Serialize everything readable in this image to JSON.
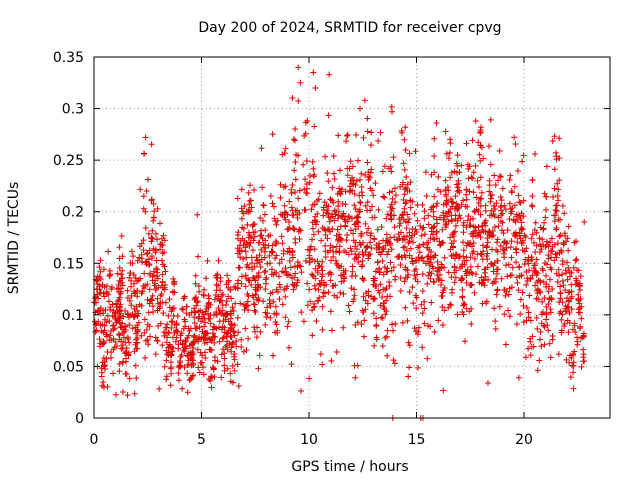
{
  "chart_data": {
    "type": "scatter",
    "title": "Day 200 of 2024, SRMTID for receiver cpvg",
    "xlabel": "GPS time / hours",
    "ylabel": "SRMTID / TECUs",
    "xlim": [
      0,
      24
    ],
    "ylim": [
      0,
      0.35
    ],
    "x_ticks": [
      0,
      5,
      10,
      15,
      20
    ],
    "x_tick_labels": [
      "0",
      "5",
      "10",
      "15",
      "20"
    ],
    "y_ticks": [
      0,
      0.05,
      0.1,
      0.15,
      0.2,
      0.25,
      0.3,
      0.35
    ],
    "y_tick_labels": [
      "0",
      "0.05",
      "0.1",
      "0.15",
      "0.2",
      "0.25",
      "0.3",
      "0.35"
    ],
    "grid": true,
    "marker": "plus",
    "color": "#e00000",
    "envelope": {
      "description": "approximate distribution of the dense point cloud (hour, mean, spread) in data units",
      "hours": [
        0,
        0.5,
        1,
        1.5,
        2,
        2.5,
        3,
        3.5,
        4,
        4.5,
        5,
        5.5,
        6,
        6.5,
        7,
        7.5,
        8,
        8.5,
        9,
        9.5,
        10,
        10.5,
        11,
        11.5,
        12,
        12.5,
        13,
        13.5,
        14,
        14.5,
        15,
        15.5,
        16,
        16.5,
        17,
        17.5,
        18,
        18.5,
        19,
        19.5,
        20,
        20.5,
        21,
        21.5,
        22,
        22.5,
        22.8
      ],
      "mean": [
        0.095,
        0.09,
        0.1,
        0.09,
        0.12,
        0.16,
        0.13,
        0.09,
        0.07,
        0.08,
        0.085,
        0.09,
        0.09,
        0.1,
        0.16,
        0.15,
        0.14,
        0.15,
        0.16,
        0.2,
        0.19,
        0.15,
        0.18,
        0.19,
        0.2,
        0.17,
        0.16,
        0.15,
        0.17,
        0.19,
        0.14,
        0.15,
        0.17,
        0.19,
        0.18,
        0.17,
        0.19,
        0.17,
        0.16,
        0.17,
        0.15,
        0.14,
        0.14,
        0.16,
        0.12,
        0.1,
        0.09
      ],
      "spread": [
        0.025,
        0.03,
        0.03,
        0.03,
        0.04,
        0.05,
        0.04,
        0.03,
        0.025,
        0.025,
        0.025,
        0.025,
        0.025,
        0.03,
        0.045,
        0.04,
        0.045,
        0.045,
        0.05,
        0.06,
        0.06,
        0.045,
        0.05,
        0.05,
        0.05,
        0.05,
        0.05,
        0.04,
        0.05,
        0.05,
        0.04,
        0.04,
        0.045,
        0.04,
        0.04,
        0.045,
        0.04,
        0.04,
        0.04,
        0.04,
        0.04,
        0.04,
        0.045,
        0.05,
        0.04,
        0.03,
        0.03
      ]
    },
    "notable_points": [
      {
        "x": 9.5,
        "y": 0.34
      },
      {
        "x": 9.6,
        "y": 0.325
      },
      {
        "x": 10.2,
        "y": 0.335
      },
      {
        "x": 10.3,
        "y": 0.32
      },
      {
        "x": 12.6,
        "y": 0.308
      },
      {
        "x": 2.4,
        "y": 0.272
      },
      {
        "x": 13.9,
        "y": 0.0
      },
      {
        "x": 15.2,
        "y": 0.0
      },
      {
        "x": 15.3,
        "y": 0.0
      },
      {
        "x": 4.8,
        "y": 0.197
      },
      {
        "x": 14.0,
        "y": 0.053
      },
      {
        "x": 22.8,
        "y": 0.19
      }
    ]
  }
}
